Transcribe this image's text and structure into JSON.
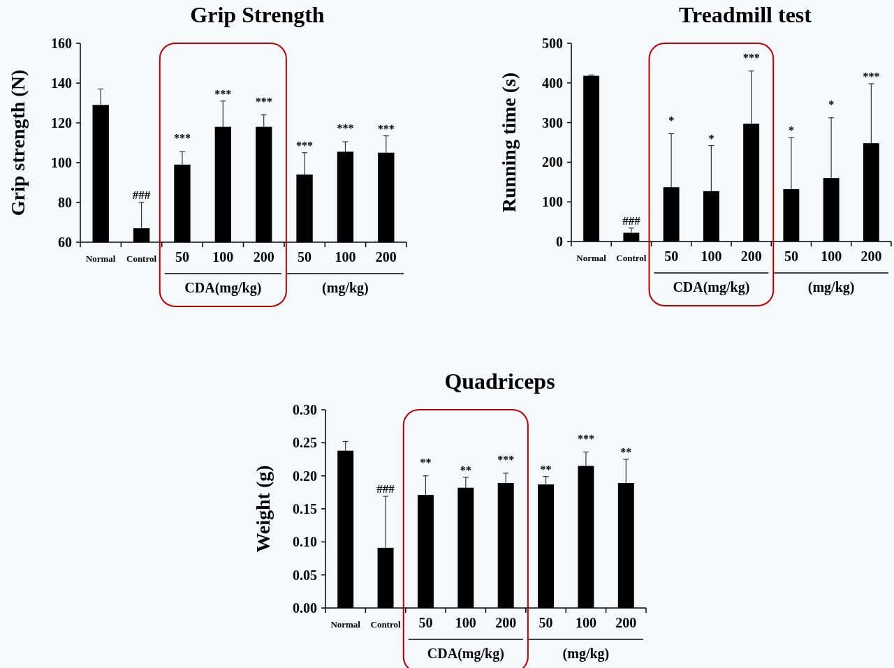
{
  "chart_data": [
    {
      "type": "bar",
      "title": "Grip Strength",
      "ylabel": "Grip strength (N)",
      "categories": [
        "Normal",
        "Control",
        "50",
        "100",
        "200",
        "50",
        "100",
        "200"
      ],
      "series": [
        {
          "color": "#000000",
          "values": [
            129,
            67,
            99,
            118,
            118,
            94,
            105.5,
            105
          ],
          "errors": [
            [
              129,
              137
            ],
            [
              67,
              80
            ],
            [
              99,
              105.5
            ],
            [
              118,
              131
            ],
            [
              118,
              124
            ],
            [
              94,
              105
            ],
            [
              105.5,
              110.5
            ],
            [
              105,
              113.5
            ]
          ]
        }
      ],
      "ylim": [
        60,
        160
      ],
      "yticks": [
        60,
        80,
        100,
        120,
        140,
        160
      ],
      "annotations": [
        "###",
        "***",
        "***",
        "***",
        "***",
        "***",
        "***",
        "CDA(mg/kg)",
        "(mg/kg)"
      ]
    },
    {
      "type": "bar",
      "title": "Treadmill test",
      "ylabel": "Running time (s)",
      "categories": [
        "Normal",
        "Control",
        "50",
        "100",
        "200",
        "50",
        "100",
        "200"
      ],
      "series": [
        {
          "color": "#000000",
          "values": [
            418,
            22,
            137,
            127,
            297,
            132,
            160,
            248
          ],
          "errors": [
            [
              418,
              420
            ],
            [
              22,
              34
            ],
            [
              137,
              272
            ],
            [
              127,
              242
            ],
            [
              297,
              430
            ],
            [
              132,
              262
            ],
            [
              160,
              312
            ],
            [
              248,
              398
            ]
          ]
        }
      ],
      "ylim": [
        0,
        500
      ],
      "yticks": [
        0,
        100,
        200,
        300,
        400,
        500
      ],
      "annotations": [
        "###",
        "*",
        "*",
        "***",
        "*",
        "*",
        "***",
        "CDA(mg/kg)",
        "(mg/kg)"
      ]
    },
    {
      "type": "bar",
      "title": "Quadriceps",
      "ylabel": "Weight (g)",
      "categories": [
        "Normal",
        "Control",
        "50",
        "100",
        "200",
        "50",
        "100",
        "200"
      ],
      "series": [
        {
          "color": "#000000",
          "values": [
            0.238,
            0.091,
            0.171,
            0.182,
            0.189,
            0.187,
            0.215,
            0.189
          ],
          "errors": [
            [
              0.238,
              0.252
            ],
            [
              0.091,
              0.169
            ],
            [
              0.171,
              0.2
            ],
            [
              0.182,
              0.198
            ],
            [
              0.189,
              0.204
            ],
            [
              0.187,
              0.199
            ],
            [
              0.215,
              0.236
            ],
            [
              0.189,
              0.225
            ]
          ]
        }
      ],
      "ylim": [
        0,
        0.3
      ],
      "yticks": [
        {
          "value": 0,
          "label": "0.00"
        },
        {
          "value": 0.05,
          "label": "0.05"
        },
        {
          "value": 0.1,
          "label": "0.10"
        },
        {
          "value": 0.15,
          "label": "0.15"
        },
        {
          "value": 0.2,
          "label": "0.20"
        },
        {
          "value": 0.25,
          "label": "0.25"
        },
        {
          "value": 0.3,
          "label": "0.30"
        }
      ],
      "annotations": [
        "###",
        "**",
        "**",
        "***",
        "**",
        "***",
        "**",
        "CDA(mg/kg)",
        "(mg/kg)"
      ]
    }
  ]
}
